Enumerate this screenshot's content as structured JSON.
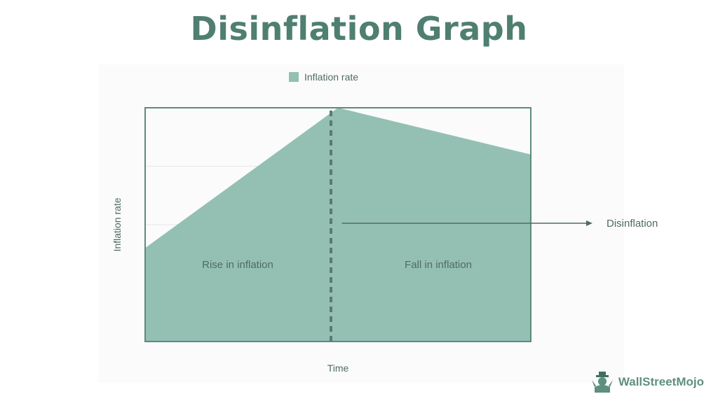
{
  "page": {
    "title": "Disinflation Graph",
    "brand": "WallStreetMojo"
  },
  "colors": {
    "title": "#4f7f71",
    "area": "#94c0b3",
    "border": "#5d8a7d",
    "divider": "#5a7a71",
    "text": "#4f6b64",
    "brand": "#5f8f7f"
  },
  "chart_data": {
    "type": "area",
    "legend": {
      "label": "Inflation rate",
      "position": "top"
    },
    "xlabel": "Time",
    "ylabel": "Inflation rate",
    "x": [
      0,
      0.5,
      1
    ],
    "values": [
      0.4,
      1.0,
      0.8
    ],
    "xlim": [
      0,
      1
    ],
    "ylim": [
      0,
      1
    ],
    "grid": true,
    "peak_marker": {
      "x": 0.5,
      "style": "dashed"
    },
    "region_labels": [
      {
        "text": "Rise in inflation",
        "x": 0.24,
        "y": 0.33
      },
      {
        "text": "Fall in inflation",
        "x": 0.76,
        "y": 0.33
      }
    ],
    "annotation": {
      "text": "Disinflation",
      "from_x": 0.51,
      "to_x": 1.16,
      "y": 0.5
    }
  }
}
